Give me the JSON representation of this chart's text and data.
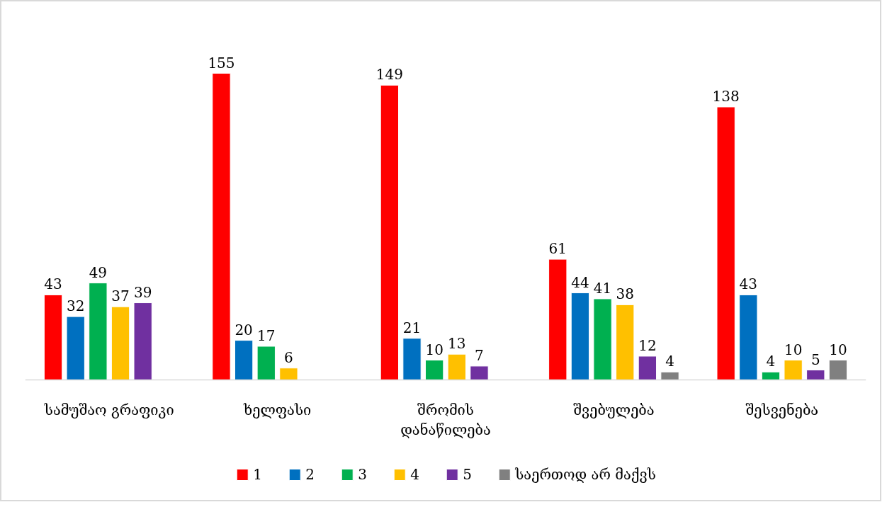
{
  "chart_data": {
    "type": "bar",
    "categories": [
      "სამუშაო გრაფიკი",
      "ხელფასი",
      "შრომის დანაწილება",
      "შვებულება",
      "შესვენება"
    ],
    "series": [
      {
        "name": "1",
        "color": "#ff0000",
        "values": [
          43,
          155,
          149,
          61,
          138
        ]
      },
      {
        "name": "2",
        "color": "#0070c0",
        "values": [
          32,
          20,
          21,
          44,
          43
        ]
      },
      {
        "name": "3",
        "color": "#00b050",
        "values": [
          49,
          17,
          10,
          41,
          4
        ]
      },
      {
        "name": "4",
        "color": "#ffc000",
        "values": [
          37,
          6,
          13,
          38,
          10
        ]
      },
      {
        "name": "5",
        "color": "#7030a0",
        "values": [
          39,
          null,
          7,
          12,
          5
        ]
      },
      {
        "name": "საერთოდ არ მაქვს",
        "color": "#808080",
        "values": [
          null,
          null,
          null,
          4,
          10
        ]
      }
    ],
    "data_labels": true,
    "legend": "bottom"
  }
}
